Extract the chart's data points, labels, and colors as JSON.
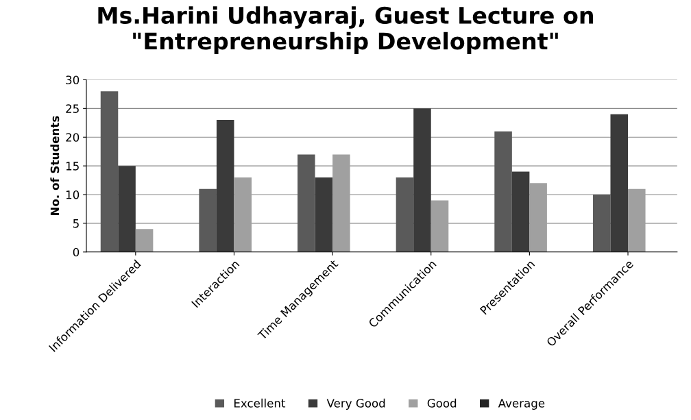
{
  "chart_data": {
    "type": "bar",
    "title": "Ms.Harini Udhayaraj, Guest Lecture on\n\"Entrepreneurship Development\"",
    "ylabel": "No. of Students",
    "categories": [
      "Information Delivered",
      "Interaction",
      "Time Management",
      "Communication",
      "Presentation",
      "Overall Performance"
    ],
    "series": [
      {
        "name": "Excellent",
        "color": "#5a5a5a",
        "values": [
          28,
          11,
          17,
          13,
          21,
          10
        ]
      },
      {
        "name": "Very Good",
        "color": "#3a3a3a",
        "values": [
          15,
          23,
          13,
          25,
          14,
          24
        ]
      },
      {
        "name": "Good",
        "color": "#a0a0a0",
        "values": [
          4,
          13,
          17,
          9,
          12,
          11
        ]
      },
      {
        "name": "Average",
        "color": "#222222",
        "values": [
          0,
          0,
          0,
          0,
          0,
          0
        ]
      }
    ],
    "ylim": [
      0,
      30
    ],
    "yticks": [
      0,
      5,
      10,
      15,
      20,
      25,
      30
    ],
    "grid": "y",
    "legend": "bottom"
  }
}
